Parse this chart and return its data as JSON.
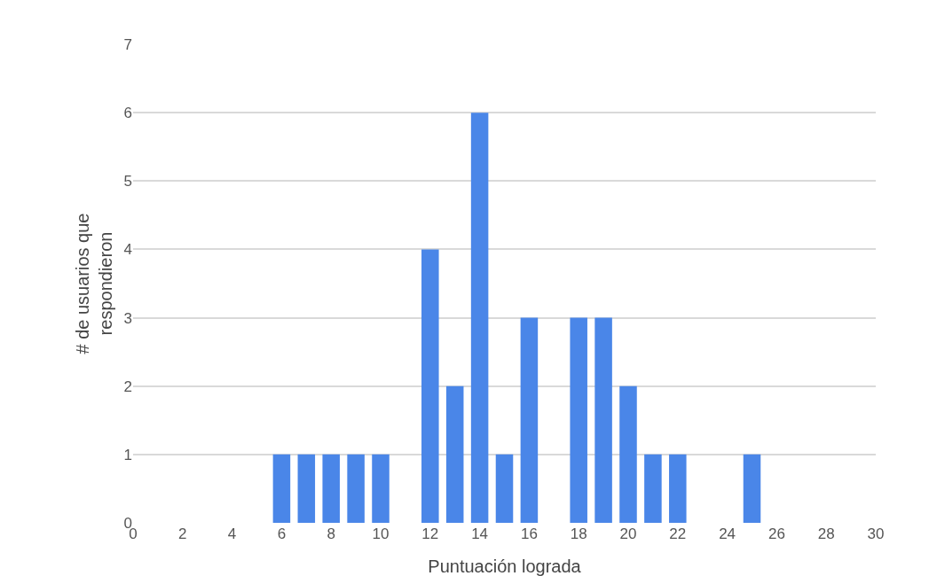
{
  "chart_data": {
    "type": "bar",
    "xlabel": "Puntuación lograda",
    "ylabel": "# de usuarios que\nrespondieron",
    "x": [
      6,
      7,
      8,
      9,
      10,
      12,
      13,
      14,
      15,
      16,
      18,
      19,
      20,
      21,
      22,
      25
    ],
    "values": [
      1,
      1,
      1,
      1,
      1,
      4,
      2,
      6,
      1,
      3,
      3,
      3,
      2,
      1,
      1,
      1
    ],
    "color": "#4a86e8",
    "xlim": [
      0,
      30
    ],
    "xticks": [
      0,
      2,
      4,
      6,
      8,
      10,
      12,
      14,
      16,
      18,
      20,
      22,
      24,
      26,
      28,
      30
    ],
    "ylim": [
      0,
      7
    ],
    "yticks": [
      0,
      1,
      2,
      3,
      4,
      5,
      6,
      7
    ],
    "grid": "y",
    "legend": false
  }
}
